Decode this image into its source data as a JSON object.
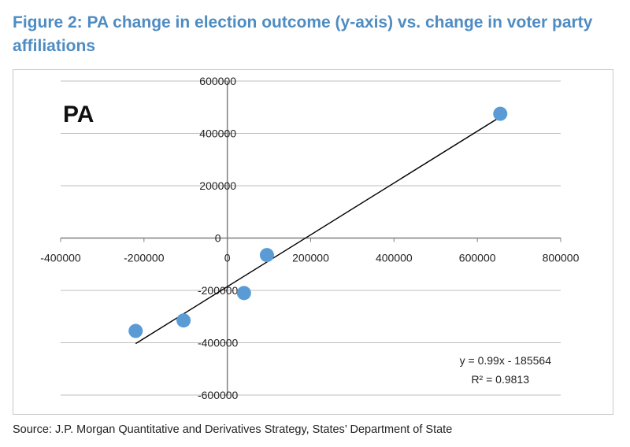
{
  "figure": {
    "title": "Figure 2: PA change in election outcome (y-axis) vs. change in voter party affiliations",
    "source": "Source: J.P. Morgan Quantitative and Derivatives Strategy, States’ Department of State"
  },
  "colors": {
    "title": "#4f8cc2",
    "marker": "#5b9bd5",
    "grid": "#bfbfbf",
    "axis": "#808080",
    "trendline": "#000000"
  },
  "chart_data": {
    "type": "scatter",
    "title": "PA",
    "xlim": [
      -400000,
      800000
    ],
    "ylim": [
      -600000,
      600000
    ],
    "xticks": [
      "-400000",
      "-200000",
      "0",
      "200000",
      "400000",
      "600000",
      "800000"
    ],
    "yticks": [
      "600000",
      "400000",
      "200000",
      "0",
      "-200000",
      "-400000",
      "-600000"
    ],
    "grid": "horizontal",
    "points": [
      {
        "x": -220000,
        "y": -355000
      },
      {
        "x": -105000,
        "y": -315000
      },
      {
        "x": 40000,
        "y": -210000
      },
      {
        "x": 95000,
        "y": -65000
      },
      {
        "x": 655000,
        "y": 475000
      }
    ],
    "trendline": {
      "x_range": [
        -220000,
        660000
      ],
      "slope": 0.99,
      "intercept": -185564,
      "equation": "y = 0.99x - 185564",
      "r2": "R² = 0.9813"
    }
  }
}
